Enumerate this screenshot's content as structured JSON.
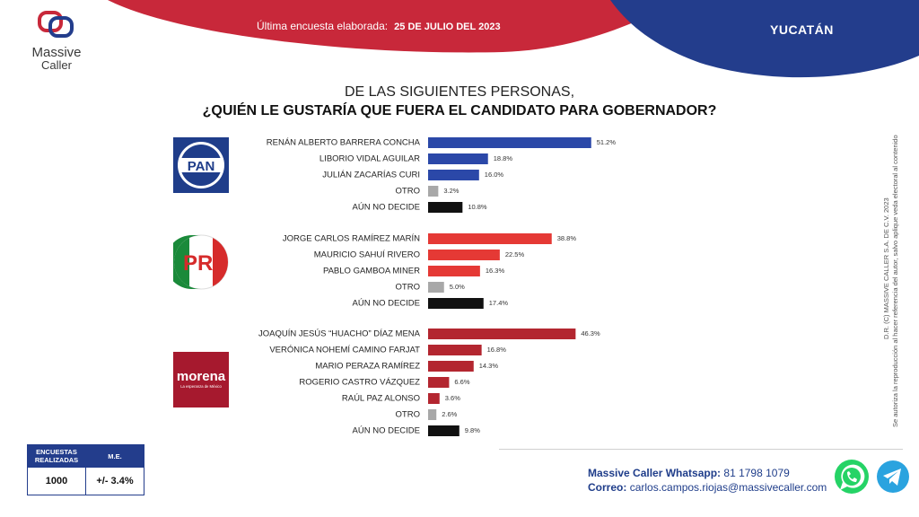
{
  "brand": {
    "name_line1": "Massive",
    "name_line2": "Caller"
  },
  "header": {
    "survey_label": "Última encuesta elaborada:",
    "survey_date": "25 DE JULIO DEL 2023",
    "state": "YUCATÁN"
  },
  "title": {
    "line1": "DE LAS SIGUIENTES PERSONAS,",
    "line2": "¿QUIÉN LE GUSTARÍA QUE FUERA EL CANDIDATO PARA GOBERNADOR?"
  },
  "colors": {
    "pan": "#2b48a8",
    "pri": "#e53935",
    "morena": "#b32630",
    "otro": "#a8a8a8",
    "no_decide": "#111111",
    "header_red": "#c8283a",
    "header_blue": "#233d8c"
  },
  "parties": [
    {
      "logo_text": "PAN"
    },
    {
      "logo_text": "PRI"
    },
    {
      "logo_text": "morena",
      "logo_subtext": "La esperanza de México"
    }
  ],
  "chart_data": {
    "type": "bar",
    "orientation": "horizontal",
    "xlim": [
      0,
      100
    ],
    "unit": "%",
    "groups": [
      {
        "party": "PAN",
        "categories": [
          "RENÁN ALBERTO BARRERA CONCHA",
          "LIBORIO  VIDAL AGUILAR",
          "JULIÁN ZACARÍAS CURI",
          "OTRO",
          "AÚN NO DECIDE"
        ],
        "values": [
          51.2,
          18.8,
          16.0,
          3.2,
          10.8
        ],
        "labels": [
          "51.2%",
          "18.8%",
          "16.0%",
          "3.2%",
          "10.8%"
        ],
        "colors": [
          "pan",
          "pan",
          "pan",
          "otro",
          "no_decide"
        ]
      },
      {
        "party": "PRI",
        "categories": [
          "JORGE CARLOS RAMÍREZ MARÍN",
          "MAURICIO SAHUÍ RIVERO",
          "PABLO GAMBOA MINER",
          "OTRO",
          "AÚN NO DECIDE"
        ],
        "values": [
          38.8,
          22.5,
          16.3,
          5.0,
          17.4
        ],
        "labels": [
          "38.8%",
          "22.5%",
          "16.3%",
          "5.0%",
          "17.4%"
        ],
        "colors": [
          "pri",
          "pri",
          "pri",
          "otro",
          "no_decide"
        ]
      },
      {
        "party": "MORENA",
        "categories": [
          "JOAQUÍN JESÚS “HUACHO” DÍAZ MENA",
          "VERÓNICA NOHEMÍ CAMINO FARJAT",
          "MARIO PERAZA RAMÍREZ",
          "ROGERIO CASTRO VÁZQUEZ",
          "RAÚL PAZ ALONSO",
          "OTRO",
          "AÚN NO DECIDE"
        ],
        "values": [
          46.3,
          16.8,
          14.3,
          6.6,
          3.6,
          2.6,
          9.8
        ],
        "labels": [
          "46.3%",
          "16.8%",
          "14.3%",
          "6.6%",
          "3.6%",
          "2.6%",
          "9.8%"
        ],
        "colors": [
          "morena",
          "morena",
          "morena",
          "morena",
          "morena",
          "otro",
          "no_decide"
        ]
      }
    ]
  },
  "stats": {
    "col1_header": "ENCUESTAS REALIZADAS",
    "col2_header": "M.E.",
    "col1_value": "1000",
    "col2_value": "+/- 3.4%"
  },
  "contact": {
    "whatsapp_label": "Massive Caller Whatsapp:",
    "whatsapp_number": "81 1798 1079",
    "email_label": "Correo:",
    "email": "carlos.campos.riojas@massivecaller.com"
  },
  "copyright": {
    "line1": "D.R. (C) MASSIVE CALLER S.A. DE C.V. 2023",
    "line2": "Se autoriza la reproducción al hacer referencia del autor, salvo aplique veda electoral al contenido"
  },
  "icons": {
    "whatsapp": "whatsapp-icon",
    "telegram": "telegram-icon",
    "logo": "massive-caller-logo-icon"
  }
}
